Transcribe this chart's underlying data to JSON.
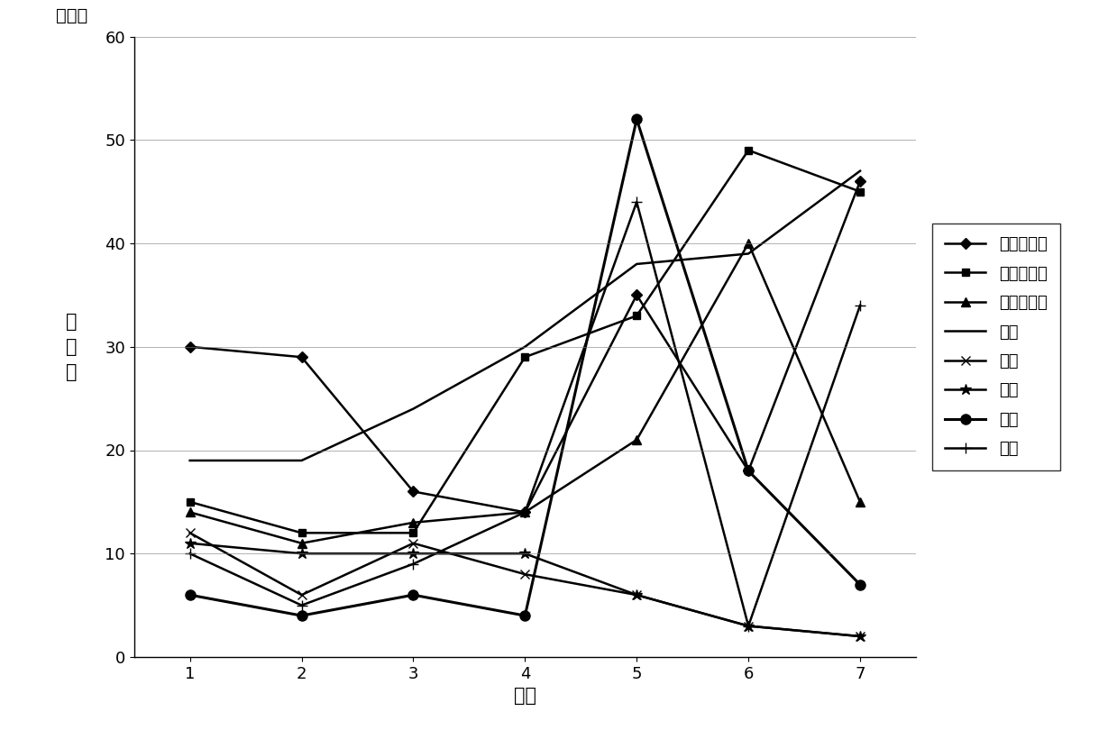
{
  "x": [
    1,
    2,
    3,
    4,
    5,
    6,
    7
  ],
  "series": [
    {
      "name": "蓝顶建筑物",
      "values": [
        30,
        29,
        16,
        14,
        35,
        18,
        46
      ],
      "marker": "D",
      "markersize": 6,
      "linewidth": 1.8
    },
    {
      "name": "红顶建筑物",
      "values": [
        15,
        12,
        12,
        29,
        33,
        49,
        45
      ],
      "marker": "s",
      "markersize": 6,
      "linewidth": 1.8
    },
    {
      "name": "水泥顶建筑",
      "values": [
        14,
        11,
        13,
        14,
        21,
        40,
        15
      ],
      "marker": "^",
      "markersize": 7,
      "linewidth": 1.8
    },
    {
      "name": "裸地",
      "values": [
        19,
        19,
        24,
        30,
        38,
        39,
        47
      ],
      "marker": "",
      "markersize": 0,
      "linewidth": 1.8
    },
    {
      "name": "湖泊",
      "values": [
        12,
        6,
        11,
        8,
        6,
        3,
        2
      ],
      "marker": "x",
      "markersize": 7,
      "linewidth": 1.8
    },
    {
      "name": "河流",
      "values": [
        11,
        10,
        10,
        10,
        6,
        3,
        2
      ],
      "marker": "*",
      "markersize": 9,
      "linewidth": 1.8
    },
    {
      "name": "农田",
      "values": [
        6,
        4,
        6,
        4,
        52,
        18,
        7
      ],
      "marker": "o",
      "markersize": 8,
      "linewidth": 2.2
    },
    {
      "name": "林地",
      "values": [
        10,
        5,
        9,
        14,
        44,
        3,
        34
      ],
      "marker": "+",
      "markersize": 9,
      "linewidth": 1.8
    }
  ],
  "xlabel": "波段",
  "ylabel_top": "（％）",
  "ylabel_main": "反\n射\n率",
  "xlim": [
    0.5,
    7.5
  ],
  "ylim": [
    0,
    60
  ],
  "yticks": [
    0,
    10,
    20,
    30,
    40,
    50,
    60
  ],
  "xticks": [
    1,
    2,
    3,
    4,
    5,
    6,
    7
  ],
  "color": "black",
  "background_color": "#ffffff",
  "axis_fontsize": 15,
  "tick_fontsize": 13,
  "legend_fontsize": 13
}
